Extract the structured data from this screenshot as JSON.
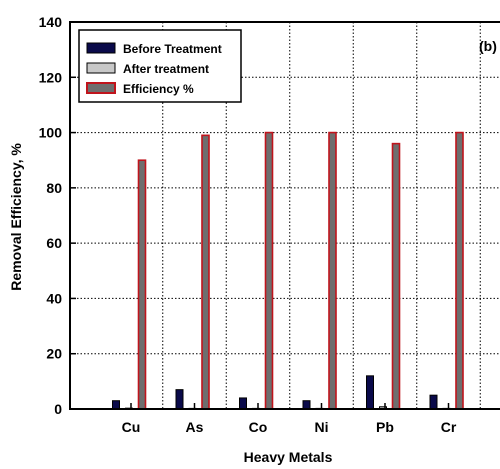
{
  "chart_data": {
    "type": "bar",
    "panel_label": "(b)",
    "xlabel": "Heavy Metals",
    "ylabel": "Removal Efficiency, %",
    "ylim": [
      0,
      140
    ],
    "yticks": [
      "0",
      "20",
      "40",
      "60",
      "80",
      "100",
      "120",
      "140"
    ],
    "grid": true,
    "legend_position": "top-left",
    "categories": [
      "Cu",
      "As",
      "Co",
      "Ni",
      "Pb",
      "Cr"
    ],
    "series": [
      {
        "name": "Before Treatment",
        "values": [
          3,
          7,
          4,
          3,
          12,
          5
        ],
        "fill": "#0a0a4a",
        "stroke": "#000000"
      },
      {
        "name": "After treatment",
        "values": [
          0.3,
          0.1,
          0,
          0,
          0.8,
          0
        ],
        "fill": "#c8c8c8",
        "stroke": "#000000"
      },
      {
        "name": "Efficiency %",
        "values": [
          90,
          99,
          100,
          100,
          96,
          100
        ],
        "fill": "#6e6e6e",
        "stroke": "#c0141c"
      }
    ]
  }
}
